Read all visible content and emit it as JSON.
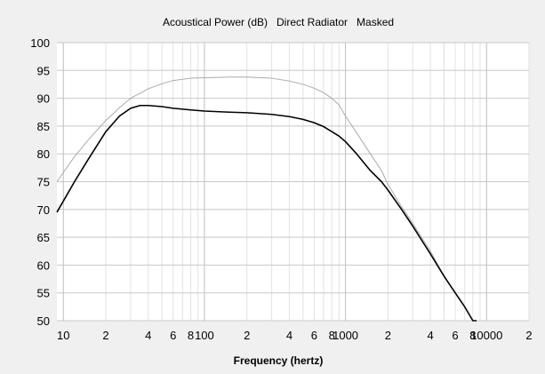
{
  "chart_data": {
    "type": "line",
    "title": "Acoustical Power (dB)   Direct Radiator   Masked",
    "xlabel": "Frequency (hertz)",
    "ylabel": "",
    "x_scale": "log",
    "xlim": [
      9,
      20000
    ],
    "ylim": [
      50,
      100
    ],
    "grid": true,
    "y_ticks": [
      50,
      55,
      60,
      65,
      70,
      75,
      80,
      85,
      90,
      95,
      100
    ],
    "x_tick_labels": [
      {
        "value": 10,
        "label": "10"
      },
      {
        "value": 20,
        "label": "2"
      },
      {
        "value": 40,
        "label": "4"
      },
      {
        "value": 60,
        "label": "6"
      },
      {
        "value": 80,
        "label": "8"
      },
      {
        "value": 100,
        "label": "100"
      },
      {
        "value": 200,
        "label": "2"
      },
      {
        "value": 400,
        "label": "4"
      },
      {
        "value": 600,
        "label": "6"
      },
      {
        "value": 800,
        "label": "8"
      },
      {
        "value": 1000,
        "label": "1000"
      },
      {
        "value": 2000,
        "label": "2"
      },
      {
        "value": 4000,
        "label": "4"
      },
      {
        "value": 6000,
        "label": "6"
      },
      {
        "value": 8000,
        "label": "8"
      },
      {
        "value": 10000,
        "label": "10000"
      },
      {
        "value": 20000,
        "label": "2"
      }
    ],
    "series": [
      {
        "color": "#000000",
        "x": [
          9,
          12,
          15,
          20,
          25,
          30,
          35,
          40,
          50,
          60,
          80,
          100,
          150,
          200,
          300,
          400,
          500,
          600,
          700,
          800,
          900,
          1000,
          1200,
          1500,
          1800,
          2000,
          2500,
          3000,
          4000,
          5000,
          6000,
          7000,
          8000,
          8500
        ],
        "y": [
          69.5,
          75.0,
          79.0,
          84.0,
          86.8,
          88.2,
          88.7,
          88.7,
          88.5,
          88.2,
          87.9,
          87.7,
          87.5,
          87.4,
          87.1,
          86.7,
          86.2,
          85.6,
          84.9,
          84.0,
          83.2,
          82.2,
          80.0,
          77.0,
          75.0,
          73.5,
          70.0,
          67.0,
          62.0,
          58.0,
          55.0,
          52.5,
          50.0,
          50.0
        ]
      },
      {
        "color": "#aaaaaa",
        "x": [
          9,
          12,
          15,
          20,
          25,
          30,
          40,
          50,
          60,
          80,
          100,
          150,
          200,
          300,
          400,
          500,
          600,
          700,
          800,
          900,
          1000,
          1200,
          1500,
          1800,
          2000,
          2500,
          3000,
          4000,
          5000,
          6000,
          7000,
          8000,
          8500
        ],
        "y": [
          75.0,
          79.5,
          82.5,
          86.0,
          88.3,
          90.0,
          91.7,
          92.6,
          93.2,
          93.6,
          93.7,
          93.8,
          93.8,
          93.6,
          93.1,
          92.5,
          91.8,
          91.0,
          90.0,
          88.8,
          86.8,
          83.8,
          80.0,
          77.0,
          74.5,
          70.5,
          67.5,
          62.5,
          58.0,
          55.0,
          52.5,
          50.0,
          50.0
        ]
      }
    ]
  }
}
